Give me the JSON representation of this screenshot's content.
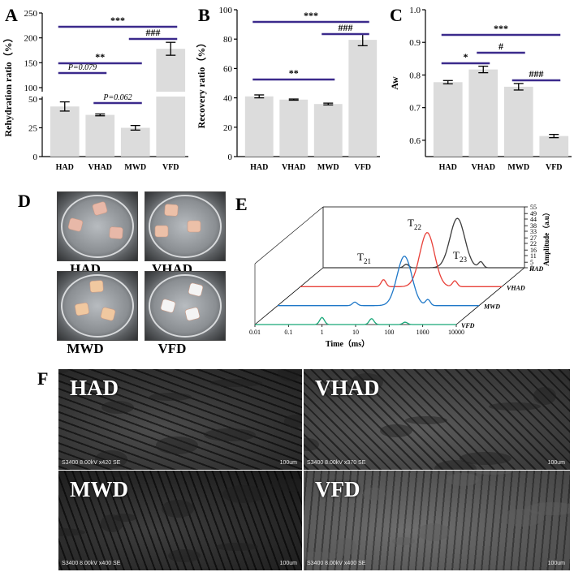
{
  "panels": {
    "A": "A",
    "B": "B",
    "C": "C",
    "D": "D",
    "E": "E",
    "F": "F"
  },
  "chart_data": [
    {
      "panel": "A",
      "type": "bar",
      "categories": [
        "HAD",
        "VHAD",
        "MWD",
        "VFD"
      ],
      "values": [
        43.5,
        36.2,
        25.0,
        178
      ],
      "errors": [
        4.0,
        0.8,
        2.0,
        13
      ],
      "ylabel": "Rehydration ratio（%）",
      "ylim": [
        0,
        250
      ],
      "axis_break": [
        50,
        100
      ],
      "yticks": [
        0,
        25,
        50,
        100,
        150,
        200,
        250
      ],
      "grid": false,
      "annotations": [
        {
          "from": "HAD",
          "to": "VFD",
          "text": "***"
        },
        {
          "from": "MWD",
          "to": "VFD",
          "text": "###"
        },
        {
          "from": "HAD",
          "to": "MWD",
          "text": "**"
        },
        {
          "from": "HAD",
          "to": "VHAD",
          "text": "P=0.079"
        },
        {
          "from": "VHAD",
          "to": "MWD",
          "text": "P=0.062"
        }
      ]
    },
    {
      "panel": "B",
      "type": "bar",
      "categories": [
        "HAD",
        "VHAD",
        "MWD",
        "VFD"
      ],
      "values": [
        41,
        38.8,
        35.8,
        79.5
      ],
      "errors": [
        1.0,
        0.4,
        0.6,
        4.0
      ],
      "ylabel": "Recovery ratio（%）",
      "ylim": [
        0,
        100
      ],
      "yticks": [
        0,
        20,
        40,
        60,
        80,
        100
      ],
      "grid": false,
      "annotations": [
        {
          "from": "HAD",
          "to": "VFD",
          "text": "***"
        },
        {
          "from": "MWD",
          "to": "VFD",
          "text": "###"
        },
        {
          "from": "HAD",
          "to": "MWD",
          "text": "**"
        }
      ]
    },
    {
      "panel": "C",
      "type": "bar",
      "categories": [
        "HAD",
        "VHAD",
        "MWD",
        "VFD"
      ],
      "values": [
        0.778,
        0.817,
        0.764,
        0.613
      ],
      "errors": [
        0.005,
        0.01,
        0.01,
        0.005
      ],
      "ylabel": "Aw",
      "ylim": [
        0.55,
        1.0
      ],
      "yticks": [
        0.6,
        0.7,
        0.8,
        0.9,
        1.0
      ],
      "grid": false,
      "annotations": [
        {
          "from": "HAD",
          "to": "VFD",
          "text": "***"
        },
        {
          "from": "HAD",
          "to": "VHAD",
          "text": "*"
        },
        {
          "from": "VHAD",
          "to": "MWD",
          "text": "#"
        },
        {
          "from": "MWD",
          "to": "VFD",
          "text": "###"
        }
      ]
    },
    {
      "panel": "E",
      "type": "line",
      "xlabel": "Time（ms）",
      "ylabel": "Amplitude（a.u）",
      "xscale": "log",
      "xticks": [
        "0.01",
        "0.1",
        "1",
        "10",
        "100",
        "1000",
        "10000"
      ],
      "zticks": [
        0,
        5,
        11,
        16,
        22,
        27,
        33,
        38,
        44,
        49,
        55
      ],
      "peak_labels": [
        "T21",
        "T22",
        "T23"
      ],
      "series": [
        {
          "name": "HAD",
          "color": "#3c3c3c",
          "peaks": [
            {
              "t": 3,
              "a": 3
            },
            {
              "t": 100,
              "a": 42
            },
            {
              "t": 500,
              "a": 5
            }
          ]
        },
        {
          "name": "VHAD",
          "color": "#e8413a",
          "peaks": [
            {
              "t": 3,
              "a": 6
            },
            {
              "t": 60,
              "a": 46
            },
            {
              "t": 400,
              "a": 5
            }
          ]
        },
        {
          "name": "MWD",
          "color": "#1f78c8",
          "peaks": [
            {
              "t": 2,
              "a": 3
            },
            {
              "t": 60,
              "a": 42
            },
            {
              "t": 300,
              "a": 5
            }
          ]
        },
        {
          "name": "VFD",
          "color": "#18a878",
          "peaks": [
            {
              "t": 1,
              "a": 6
            },
            {
              "t": 30,
              "a": 5
            },
            {
              "t": 300,
              "a": 2
            }
          ]
        }
      ]
    }
  ],
  "photos": [
    {
      "label": "HAD",
      "color": "#e8b8a8"
    },
    {
      "label": "VHAD",
      "color": "#ecc0a8"
    },
    {
      "label": "MWD",
      "color": "#f0c8a0"
    },
    {
      "label": "VFD",
      "color": "#f4f4f4"
    }
  ],
  "sem": [
    {
      "label": "HAD",
      "info": "S3400 8.00kV x420 SE",
      "scale": "100um"
    },
    {
      "label": "VHAD",
      "info": "S3400 8.00kV x370 SE",
      "scale": "100um"
    },
    {
      "label": "MWD",
      "info": "S3400 8.00kV x400 SE",
      "scale": "100um"
    },
    {
      "label": "VFD",
      "info": "S3400 8.00kV x400 SE",
      "scale": "100um"
    }
  ],
  "colors": {
    "bar": "#dcdcdc",
    "bracket": "#3b2a8c",
    "axis": "#000000"
  }
}
